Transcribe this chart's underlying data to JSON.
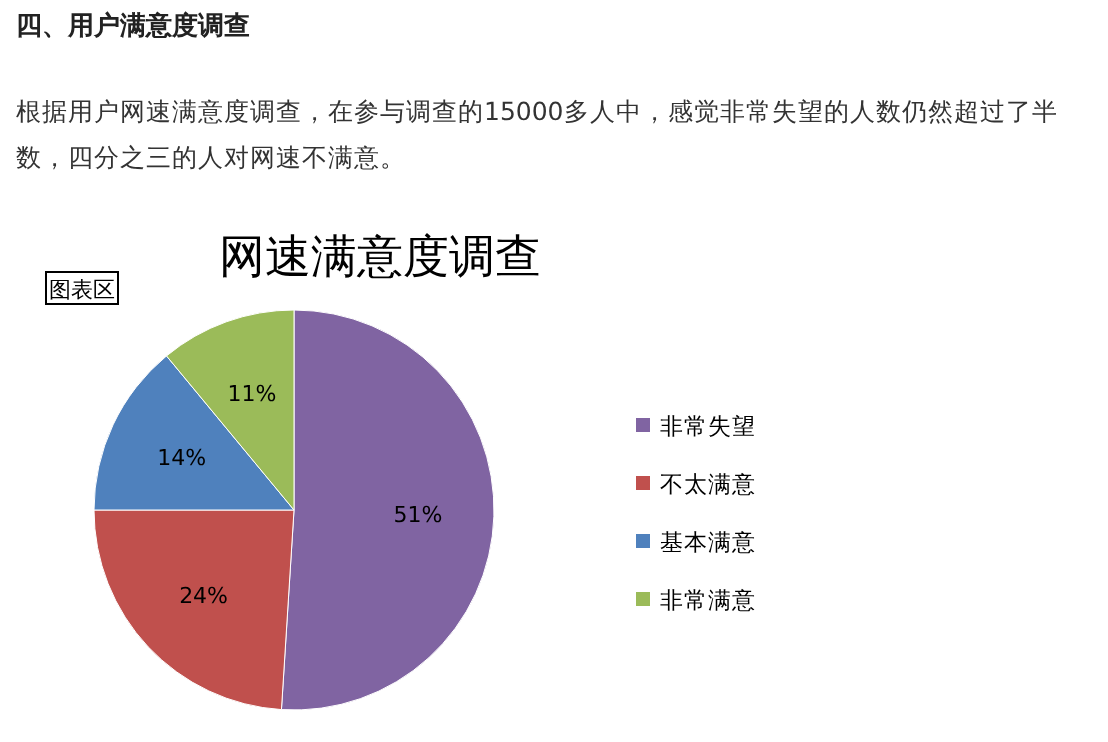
{
  "chart_data": {
    "type": "pie",
    "title": "网速满意度调查",
    "categories": [
      "非常失望",
      "不太满意",
      "基本满意",
      "非常满意"
    ],
    "values": [
      51,
      24,
      14,
      11
    ],
    "value_labels": [
      "51%",
      "24%",
      "14%",
      "11%"
    ],
    "colors": [
      "#8064a2",
      "#c0504d",
      "#4f81bd",
      "#9bbb59"
    ],
    "legend": "right",
    "annotations": [
      "四、用户满意度调查",
      "根据用户网速满意度调查，在参与调查的15000多人中，感觉非常失望的人数仍然超过了半数，四分之三的人对网速不满意。",
      "图表区"
    ]
  }
}
